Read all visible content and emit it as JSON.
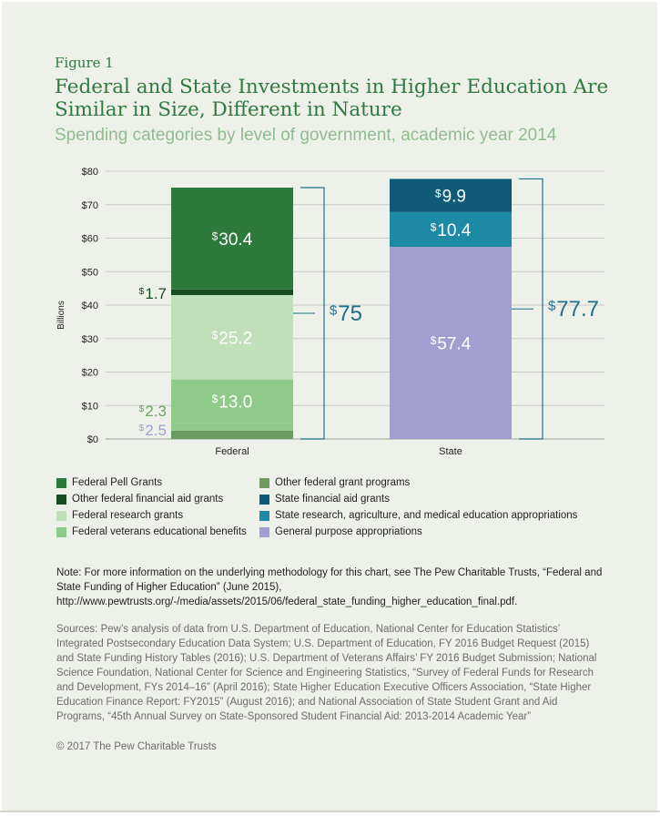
{
  "figure_label": "Figure 1",
  "title": "Federal and State Investments in Higher Education Are Similar in Size, Different in Nature",
  "subtitle": "Spending categories by level of government, academic year 2014",
  "colors": {
    "pell": "#2e7a3c",
    "other_fin_aid": "#174d22",
    "research": "#bfe0b8",
    "veterans": "#8ecb8a",
    "other_grant": "#6d9a61",
    "state_fin_aid": "#0e5a78",
    "state_research": "#1f8aa6",
    "general": "#a29fd0",
    "federal_total_label": "#1f6f86",
    "state_total_label": "#1f6f86"
  },
  "chart_data": {
    "type": "bar",
    "stacked": true,
    "categories": [
      "Federal",
      "State"
    ],
    "ylabel": "Billions",
    "ylim": [
      0,
      80
    ],
    "yticks": [
      "$0",
      "$10",
      "$20",
      "$30",
      "$40",
      "$50",
      "$60",
      "$70",
      "$80"
    ],
    "grid": true,
    "totals": [
      "75",
      "77.7"
    ],
    "series": [
      {
        "name": "General purpose appropriations",
        "key": "general",
        "values": [
          null,
          57.4
        ],
        "labels": [
          "",
          "57.4"
        ]
      },
      {
        "name": "Other federal grant programs",
        "key": "other_grant",
        "values": [
          2.5,
          null
        ],
        "labels": [
          "2.5",
          ""
        ]
      },
      {
        "name": "Federal veterans educational benefits",
        "key": "veterans",
        "values": [
          2.3,
          null
        ],
        "labels": [
          "2.3",
          ""
        ]
      },
      {
        "name": "Federal research grants",
        "key": "veterans_main",
        "values": [
          13.0,
          null
        ],
        "labels": [
          "13.0",
          ""
        ]
      },
      {
        "name": "Federal research grants",
        "key": "research",
        "values": [
          25.2,
          null
        ],
        "labels": [
          "25.2",
          ""
        ]
      },
      {
        "name": "Other federal financial aid grants",
        "key": "other_fin_aid",
        "values": [
          1.7,
          null
        ],
        "labels": [
          "1.7",
          ""
        ]
      },
      {
        "name": "Federal Pell Grants",
        "key": "pell",
        "values": [
          30.4,
          null
        ],
        "labels": [
          "30.4",
          ""
        ]
      },
      {
        "name": "State research, agriculture, and medical education appropriations",
        "key": "state_research",
        "values": [
          null,
          10.4
        ],
        "labels": [
          "",
          "10.4"
        ]
      },
      {
        "name": "State financial aid grants",
        "key": "state_fin_aid",
        "values": [
          null,
          9.9
        ],
        "labels": [
          "",
          "9.9"
        ]
      }
    ]
  },
  "legend": [
    {
      "label": "Federal Pell Grants",
      "color": "#2e7a3c"
    },
    {
      "label": "Other federal financial aid grants",
      "color": "#174d22"
    },
    {
      "label": "Federal research grants",
      "color": "#bfe0b8"
    },
    {
      "label": "Federal veterans educational benefits",
      "color": "#8ecb8a"
    },
    {
      "label": "Other federal grant programs",
      "color": "#6d9a61"
    },
    {
      "label": "State financial aid grants",
      "color": "#0e5a78"
    },
    {
      "label": "State research, agriculture, and medical education appropriations",
      "color": "#1f8aa6"
    },
    {
      "label": "General purpose appropriations",
      "color": "#a29fd0"
    }
  ],
  "note": "Note: For more information on the underlying methodology for this chart, see The Pew Charitable Trusts, “Federal and State Funding of Higher Education” (June 2015), http://www.pewtrusts.org/-/media/assets/2015/06/federal_state_funding_higher_education_final.pdf.",
  "sources": "Sources:  Pew’s analysis of data from U.S. Department of Education, National Center for Education Statistics’ Integrated Postsecondary Education Data System; U.S. Department of Education, FY 2016 Budget Request (2015) and State Funding History Tables (2016); U.S. Department of Veterans Affairs’ FY 2016 Budget Submission; National Science Foundation, National Center for Science and Engineering Statistics, “Survey of Federal Funds for Research and Development, FYs 2014–16” (April 2016); State Higher Education Executive Officers Association, “State Higher Education Finance Report: FY2015” (August 2016); and National Association of State Student Grant and Aid Programs, “45th Annual Survey on State-Sponsored Student Financial Aid: 2013-2014 Academic Year”",
  "copyright": "© 2017 The Pew Charitable Trusts",
  "currency_symbol": "$"
}
